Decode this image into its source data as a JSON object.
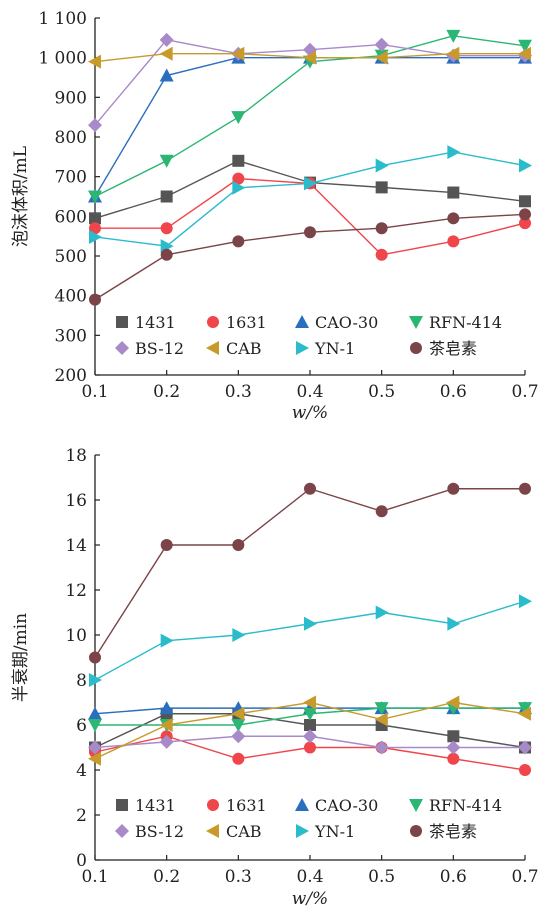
{
  "chart_data": [
    {
      "type": "line",
      "xlabel": "w/%",
      "ylabel": "泡沫体积/mL",
      "xlim": [
        0.1,
        0.7
      ],
      "ylim": [
        200,
        1100
      ],
      "x": [
        0.1,
        0.2,
        0.3,
        0.4,
        0.5,
        0.6,
        0.7
      ],
      "xticks": [
        "0.1",
        "0.2",
        "0.3",
        "0.4",
        "0.5",
        "0.6",
        "0.7"
      ],
      "yticks": [
        200,
        300,
        400,
        500,
        600,
        700,
        800,
        900,
        1000,
        1100
      ],
      "ytick_labels": [
        "200",
        "300",
        "400",
        "500",
        "600",
        "700",
        "800",
        "900",
        "1 000",
        "1 100"
      ],
      "legend_position": "bottom-center",
      "grid": false,
      "series": [
        {
          "name": "1431",
          "marker": "square",
          "color": "#555555",
          "values": [
            595,
            650,
            740,
            685,
            673,
            660,
            638
          ]
        },
        {
          "name": "1631",
          "marker": "circle",
          "color": "#f0454a",
          "values": [
            570,
            570,
            695,
            683,
            503,
            537,
            583
          ]
        },
        {
          "name": "CAO-30",
          "marker": "triangle-up",
          "color": "#2a6fbe",
          "values": [
            650,
            955,
            1000,
            1000,
            1000,
            1000,
            1000
          ]
        },
        {
          "name": "RFN-414",
          "marker": "triangle-down",
          "color": "#2bb673",
          "values": [
            650,
            740,
            850,
            990,
            1005,
            1055,
            1030
          ]
        },
        {
          "name": "BS-12",
          "marker": "diamond",
          "color": "#a98ac9",
          "values": [
            830,
            1045,
            1010,
            1020,
            1033,
            1005,
            1005
          ]
        },
        {
          "name": "CAB",
          "marker": "triangle-left",
          "color": "#c89a2b",
          "values": [
            990,
            1010,
            1010,
            1000,
            1000,
            1010,
            1010
          ]
        },
        {
          "name": "YN-1",
          "marker": "triangle-right",
          "color": "#2bbccc",
          "values": [
            548,
            525,
            672,
            683,
            728,
            762,
            728
          ]
        },
        {
          "name": "茶皂素",
          "marker": "circle",
          "color": "#7a4448",
          "values": [
            390,
            503,
            537,
            560,
            570,
            595,
            605
          ]
        }
      ]
    },
    {
      "type": "line",
      "xlabel": "w/%",
      "ylabel": "半衰期/min",
      "xlim": [
        0.1,
        0.7
      ],
      "ylim": [
        0,
        18
      ],
      "x": [
        0.1,
        0.2,
        0.3,
        0.4,
        0.5,
        0.6,
        0.7
      ],
      "xticks": [
        "0.1",
        "0.2",
        "0.3",
        "0.4",
        "0.5",
        "0.6",
        "0.7"
      ],
      "yticks": [
        0,
        2,
        4,
        6,
        8,
        10,
        12,
        14,
        16,
        18
      ],
      "ytick_labels": [
        "0",
        "2",
        "4",
        "6",
        "8",
        "10",
        "12",
        "14",
        "16",
        "18"
      ],
      "legend_position": "bottom-center",
      "grid": false,
      "series": [
        {
          "name": "1431",
          "marker": "square",
          "color": "#555555",
          "values": [
            5.0,
            6.5,
            6.5,
            6.0,
            6.0,
            5.5,
            5.0
          ]
        },
        {
          "name": "1631",
          "marker": "circle",
          "color": "#f0454a",
          "values": [
            4.8,
            5.5,
            4.5,
            5.0,
            5.0,
            4.5,
            4.0
          ]
        },
        {
          "name": "CAO-30",
          "marker": "triangle-up",
          "color": "#2a6fbe",
          "values": [
            6.5,
            6.75,
            6.75,
            6.75,
            6.75,
            6.75,
            6.75
          ]
        },
        {
          "name": "RFN-414",
          "marker": "triangle-down",
          "color": "#2bb673",
          "values": [
            6.0,
            6.0,
            6.0,
            6.5,
            6.75,
            6.75,
            6.75
          ]
        },
        {
          "name": "BS-12",
          "marker": "diamond",
          "color": "#a98ac9",
          "values": [
            5.0,
            5.25,
            5.5,
            5.5,
            5.0,
            5.0,
            5.0
          ]
        },
        {
          "name": "CAB",
          "marker": "triangle-left",
          "color": "#c89a2b",
          "values": [
            4.5,
            6.0,
            6.5,
            7.0,
            6.25,
            7.0,
            6.5
          ]
        },
        {
          "name": "YN-1",
          "marker": "triangle-right",
          "color": "#2bbccc",
          "values": [
            8.0,
            9.75,
            10.0,
            10.5,
            11.0,
            10.5,
            11.5
          ]
        },
        {
          "name": "茶皂素",
          "marker": "circle",
          "color": "#7a4448",
          "values": [
            9.0,
            14.0,
            14.0,
            16.5,
            15.5,
            16.5,
            16.5
          ]
        }
      ]
    }
  ]
}
